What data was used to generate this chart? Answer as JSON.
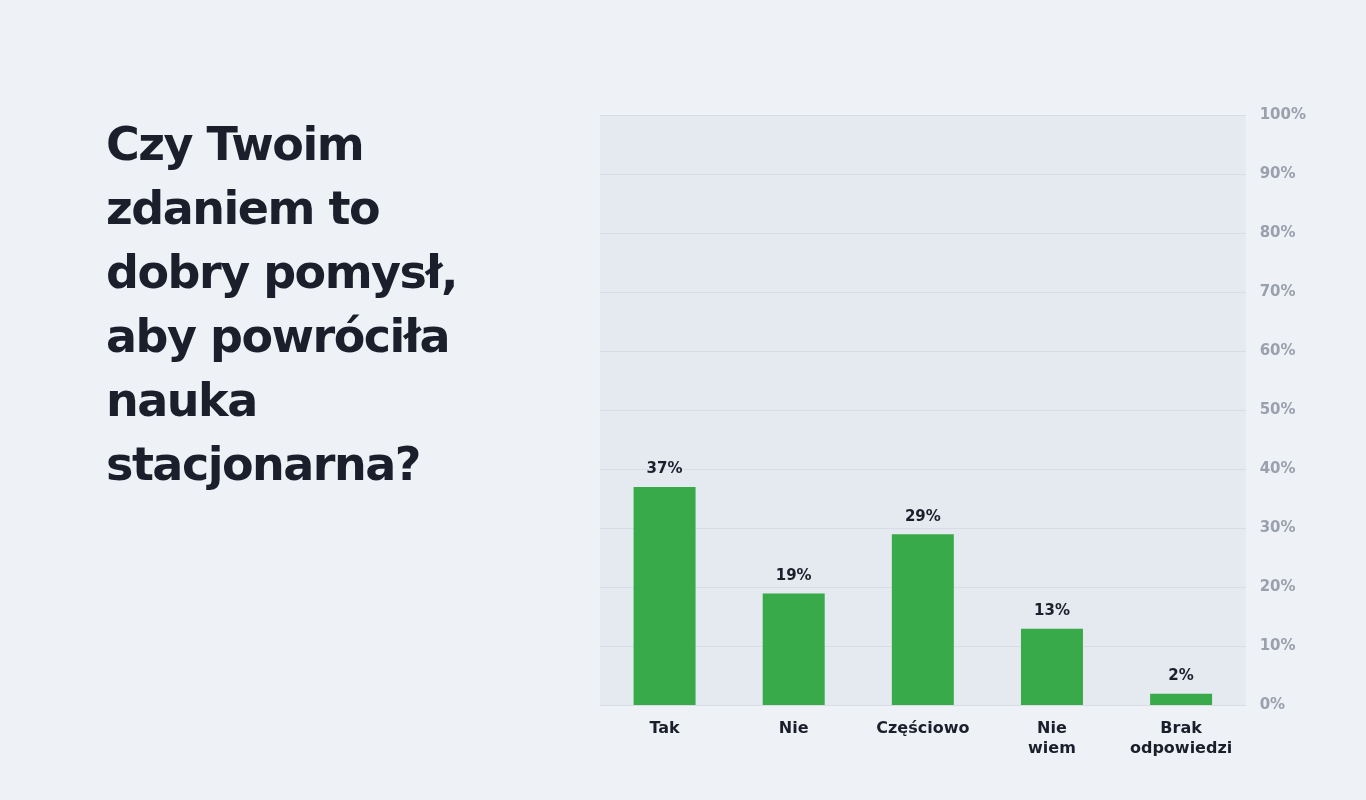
{
  "chart_data": {
    "type": "bar",
    "title": "Czy Twoim zdaniem to dobry pomysł, aby powróciła nauka stacjonarna?",
    "categories": [
      "Tak",
      "Nie",
      "Częściowo",
      "Nie wiem",
      "Brak odpowiedzi"
    ],
    "values": [
      37,
      19,
      29,
      13,
      2
    ],
    "value_labels": [
      "37%",
      "19%",
      "29%",
      "13%",
      "2%"
    ],
    "color": "#38aa4a",
    "ylim": [
      0,
      100
    ],
    "yticks": [
      {
        "value": 0,
        "label": "0%"
      },
      {
        "value": 10,
        "label": "10%"
      },
      {
        "value": 20,
        "label": "20%"
      },
      {
        "value": 30,
        "label": "30%"
      },
      {
        "value": 40,
        "label": "40%"
      },
      {
        "value": 50,
        "label": "50%"
      },
      {
        "value": 60,
        "label": "60%"
      },
      {
        "value": 70,
        "label": "70%"
      },
      {
        "value": 80,
        "label": "80%"
      },
      {
        "value": 90,
        "label": "90%"
      },
      {
        "value": 100,
        "label": "100%"
      }
    ],
    "grid": "y",
    "legend": false
  }
}
